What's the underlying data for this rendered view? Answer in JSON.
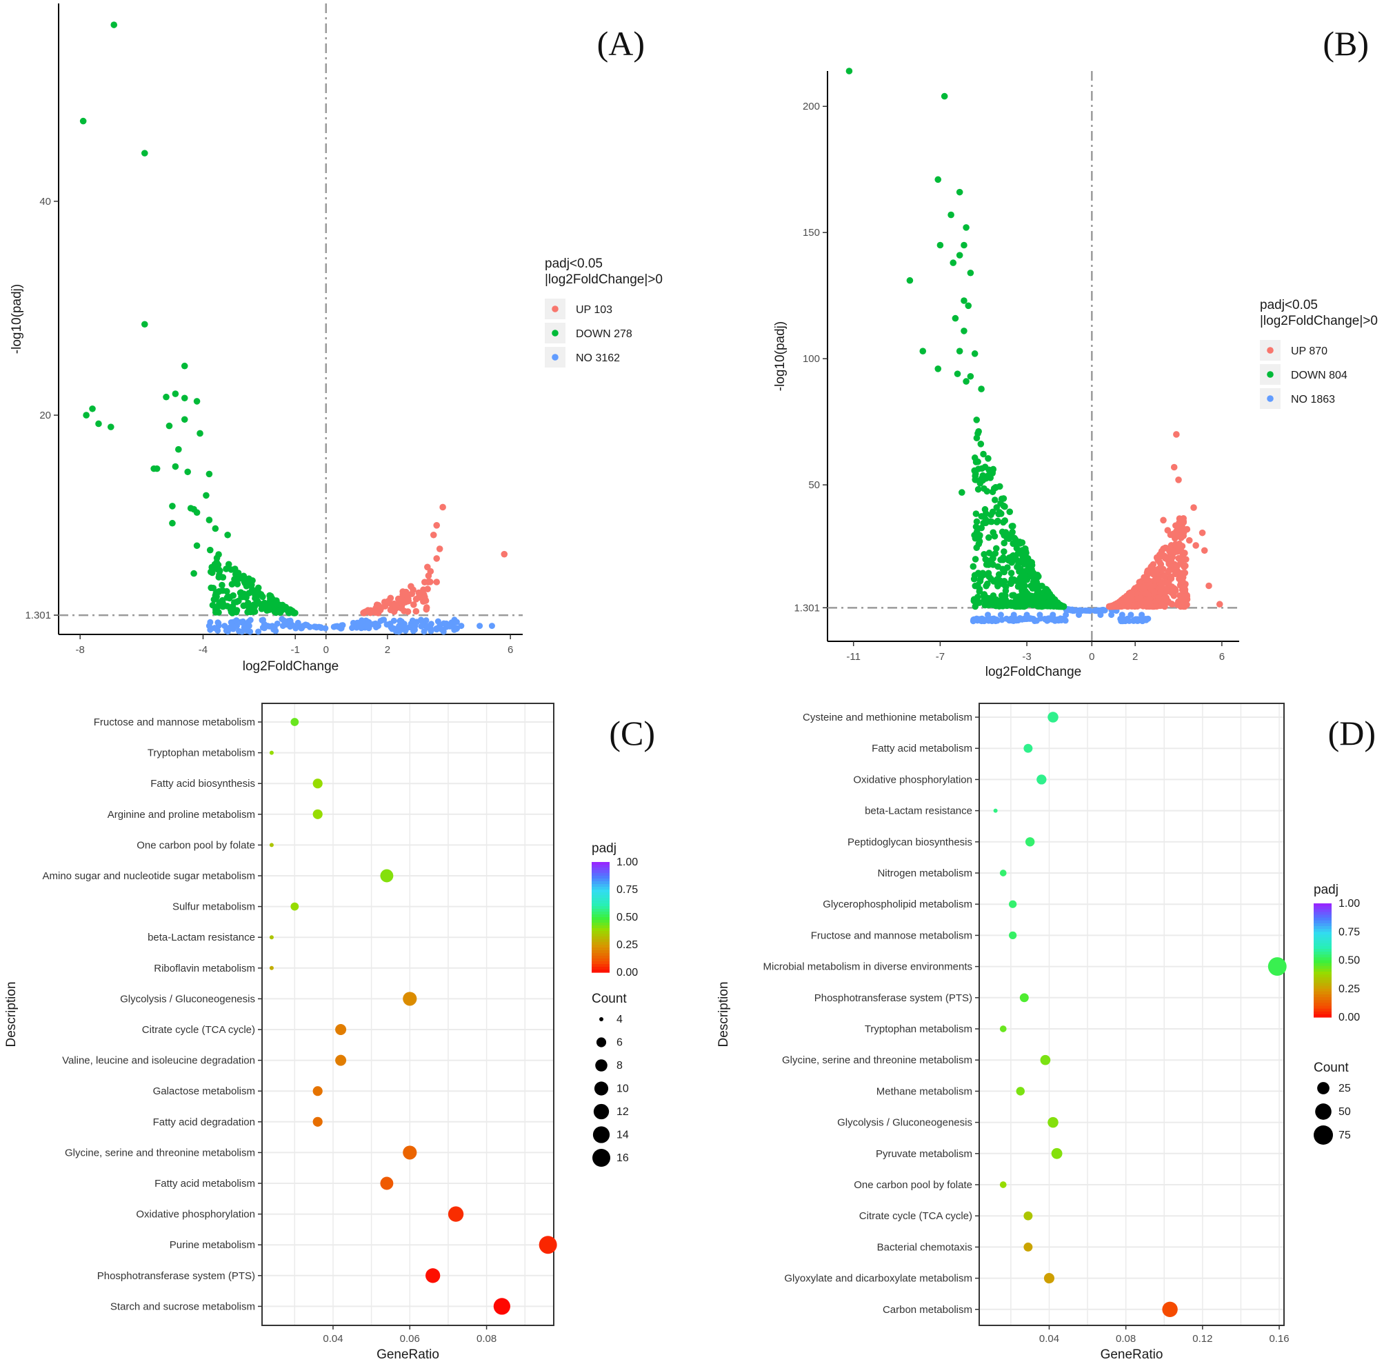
{
  "chart_data": [
    {
      "panel": "(A)",
      "type": "scatter",
      "subtype": "volcano",
      "xlabel": "log2FoldChange",
      "ylabel": "-log10(padj)",
      "xticks": [
        -8,
        -4,
        -1,
        0,
        2,
        6
      ],
      "yticks": [
        1.301,
        20,
        40
      ],
      "xlim": [
        -8.7,
        6.4
      ],
      "ylim": [
        -0.5,
        58.5
      ],
      "threshold_y": 1.301,
      "threshold_x": 0,
      "legend": {
        "title": [
          "padj<0.05",
          "|log2FoldChange|>0"
        ],
        "entries": [
          {
            "label": "UP 103",
            "color": "#f8766d"
          },
          {
            "label": "DOWN 278",
            "color": "#00ba38"
          },
          {
            "label": "NO 3162",
            "color": "#619cff"
          }
        ]
      },
      "series": [
        {
          "name": "DOWN",
          "color": "#00ba38",
          "points": [
            [
              -6.9,
              56.5
            ],
            [
              -7.9,
              47.5
            ],
            [
              -5.9,
              44.5
            ],
            [
              -5.9,
              28.5
            ],
            [
              -4.6,
              24.6
            ],
            [
              -7.6,
              20.6
            ],
            [
              -7.8,
              20
            ],
            [
              -7.4,
              19.2
            ],
            [
              -7.0,
              18.9
            ],
            [
              -5.2,
              21.7
            ],
            [
              -4.9,
              22.0
            ],
            [
              -4.6,
              21.6
            ],
            [
              -4.2,
              21.3
            ],
            [
              -4.6,
              19.6
            ],
            [
              -5.1,
              19.0
            ],
            [
              -4.1,
              18.3
            ],
            [
              -4.8,
              16.8
            ],
            [
              -4.9,
              15.2
            ],
            [
              -4.5,
              14.7
            ],
            [
              -3.8,
              14.5
            ],
            [
              -5.6,
              15.0
            ],
            [
              -5.5,
              15.0
            ],
            [
              -3.9,
              12.5
            ],
            [
              -5.0,
              11.5
            ],
            [
              -4.4,
              11.3
            ],
            [
              -4.3,
              11.2
            ],
            [
              -3.8,
              10.2
            ],
            [
              -4.2,
              10.9
            ],
            [
              -3.6,
              9.4
            ],
            [
              -3.2,
              8.8
            ],
            [
              -4.2,
              7.8
            ],
            [
              -4.3,
              5.2
            ],
            [
              -5.0,
              9.9
            ]
          ]
        },
        {
          "name": "UP",
          "color": "#f8766d",
          "points": [
            [
              5.8,
              7.0
            ],
            [
              3.8,
              11.4
            ],
            [
              3.6,
              9.7
            ],
            [
              3.5,
              8.8
            ],
            [
              3.7,
              7.5
            ],
            [
              3.6,
              6.6
            ],
            [
              3.4,
              5.4
            ],
            [
              3.3,
              5.8
            ],
            [
              3.6,
              4.4
            ]
          ]
        }
      ]
    },
    {
      "panel": "(B)",
      "type": "scatter",
      "subtype": "volcano",
      "xlabel": "log2FoldChange",
      "ylabel": "-log10(padj)",
      "xticks": [
        -11,
        -7,
        -3,
        0,
        2,
        6
      ],
      "yticks": [
        1.301,
        50,
        100,
        150,
        200
      ],
      "xlim": [
        -12.2,
        6.8
      ],
      "ylim": [
        -12,
        214
      ],
      "threshold_y": 1.301,
      "threshold_x": 0,
      "legend": {
        "title": [
          "padj<0.05",
          "|log2FoldChange|>0"
        ],
        "entries": [
          {
            "label": "UP 870",
            "color": "#f8766d"
          },
          {
            "label": "DOWN 804",
            "color": "#00ba38"
          },
          {
            "label": "NO 1863",
            "color": "#619cff"
          }
        ]
      },
      "series": [
        {
          "name": "DOWN",
          "color": "#00ba38",
          "points": [
            [
              -11.2,
              214
            ],
            [
              -6.8,
              204
            ],
            [
              -7.1,
              171
            ],
            [
              -6.1,
              166
            ],
            [
              -6.5,
              157
            ],
            [
              -5.8,
              152
            ],
            [
              -5.9,
              145
            ],
            [
              -7.0,
              145
            ],
            [
              -6.1,
              141
            ],
            [
              -6.4,
              138
            ],
            [
              -5.6,
              134
            ],
            [
              -8.4,
              131
            ],
            [
              -5.9,
              123
            ],
            [
              -5.7,
              121
            ],
            [
              -6.3,
              116
            ],
            [
              -5.9,
              111
            ],
            [
              -7.8,
              103
            ],
            [
              -6.1,
              103
            ],
            [
              -5.4,
              102
            ],
            [
              -7.1,
              96
            ],
            [
              -6.2,
              94
            ],
            [
              -5.6,
              93
            ],
            [
              -5.8,
              91
            ],
            [
              -5.1,
              88
            ],
            [
              -6.0,
              47
            ]
          ]
        },
        {
          "name": "UP",
          "color": "#f8766d",
          "points": [
            [
              3.9,
              70
            ],
            [
              3.8,
              57
            ],
            [
              4.0,
              52
            ],
            [
              4.7,
              41
            ],
            [
              5.1,
              31
            ],
            [
              4.5,
              28
            ],
            [
              4.8,
              26
            ],
            [
              5.2,
              24
            ],
            [
              5.4,
              10
            ],
            [
              5.9,
              2.7
            ],
            [
              3.5,
              32
            ],
            [
              3.3,
              36
            ]
          ]
        }
      ]
    },
    {
      "panel": "(C)",
      "type": "scatter",
      "subtype": "dotplot",
      "xlabel": "GeneRatio",
      "ylabel": "Description",
      "xticks": [
        0.04,
        0.06,
        0.08
      ],
      "xlim": [
        0.0215,
        0.0975
      ],
      "legend": {
        "color_title": "padj",
        "color_ticks": [
          "1.00",
          "0.75",
          "0.50",
          "0.25",
          "0.00"
        ],
        "size_title": "Count",
        "size_ticks": [
          4,
          6,
          8,
          10,
          12,
          14,
          16
        ]
      },
      "categories": [
        "Fructose and mannose metabolism",
        "Tryptophan metabolism",
        "Fatty acid biosynthesis",
        "Arginine and proline metabolism",
        "One carbon pool by folate",
        "Amino sugar and nucleotide sugar metabolism",
        "Sulfur metabolism",
        "beta-Lactam resistance",
        "Riboflavin metabolism",
        "Glycolysis / Gluconeogenesis",
        "Citrate cycle (TCA cycle)",
        "Valine, leucine and isoleucine degradation",
        "Galactose metabolism",
        "Fatty acid degradation",
        "Glycine, serine and threonine metabolism",
        "Fatty acid metabolism",
        "Oxidative phosphorylation",
        "Purine metabolism",
        "Phosphotransferase system (PTS)",
        "Starch and sucrose metabolism"
      ],
      "gene_ratio": [
        0.03,
        0.024,
        0.036,
        0.036,
        0.024,
        0.054,
        0.03,
        0.024,
        0.024,
        0.06,
        0.042,
        0.042,
        0.036,
        0.036,
        0.06,
        0.054,
        0.072,
        0.096,
        0.066,
        0.084
      ],
      "count": [
        5,
        4,
        6,
        6,
        4,
        9,
        5,
        4,
        4,
        10,
        7,
        7,
        6,
        6,
        10,
        9,
        12,
        16,
        11,
        14
      ],
      "padj": [
        0.45,
        0.4,
        0.4,
        0.4,
        0.35,
        0.42,
        0.4,
        0.35,
        0.3,
        0.23,
        0.2,
        0.2,
        0.18,
        0.17,
        0.15,
        0.13,
        0.06,
        0.05,
        0.02,
        0.01
      ]
    },
    {
      "panel": "(D)",
      "type": "scatter",
      "subtype": "dotplot",
      "xlabel": "GeneRatio",
      "ylabel": "Description",
      "xticks": [
        0.04,
        0.08,
        0.12,
        0.16
      ],
      "xlim": [
        0.0035,
        0.1625
      ],
      "legend": {
        "color_title": "padj",
        "color_ticks": [
          "1.00",
          "0.75",
          "0.50",
          "0.25",
          "0.00"
        ],
        "size_title": "Count",
        "size_ticks": [
          25,
          50,
          75
        ]
      },
      "categories": [
        "Cysteine and methionine metabolism",
        "Fatty acid metabolism",
        "Oxidative phosphorylation",
        "beta-Lactam resistance",
        "Peptidoglycan biosynthesis",
        "Nitrogen metabolism",
        "Glycerophospholipid metabolism",
        "Fructose and mannose metabolism",
        "Microbial metabolism in diverse environments",
        "Phosphotransferase system (PTS)",
        "Tryptophan metabolism",
        "Glycine, serine and threonine metabolism",
        "Methane metabolism",
        "Glycolysis / Gluconeogenesis",
        "Pyruvate metabolism",
        "One carbon pool by folate",
        "Citrate cycle (TCA cycle)",
        "Bacterial chemotaxis",
        "Glyoxylate and dicarboxylate metabolism",
        "Carbon metabolism"
      ],
      "gene_ratio": [
        0.042,
        0.029,
        0.036,
        0.012,
        0.03,
        0.016,
        0.021,
        0.021,
        0.159,
        0.027,
        0.016,
        0.038,
        0.025,
        0.042,
        0.044,
        0.016,
        0.029,
        0.029,
        0.04,
        0.103
      ],
      "count": [
        18,
        12,
        15,
        5,
        13,
        7,
        9,
        9,
        68,
        12,
        7,
        16,
        11,
        18,
        19,
        7,
        12,
        12,
        17,
        44
      ],
      "padj": [
        0.58,
        0.58,
        0.58,
        0.57,
        0.55,
        0.55,
        0.55,
        0.54,
        0.52,
        0.48,
        0.45,
        0.43,
        0.43,
        0.42,
        0.42,
        0.4,
        0.35,
        0.28,
        0.27,
        0.1
      ]
    }
  ]
}
